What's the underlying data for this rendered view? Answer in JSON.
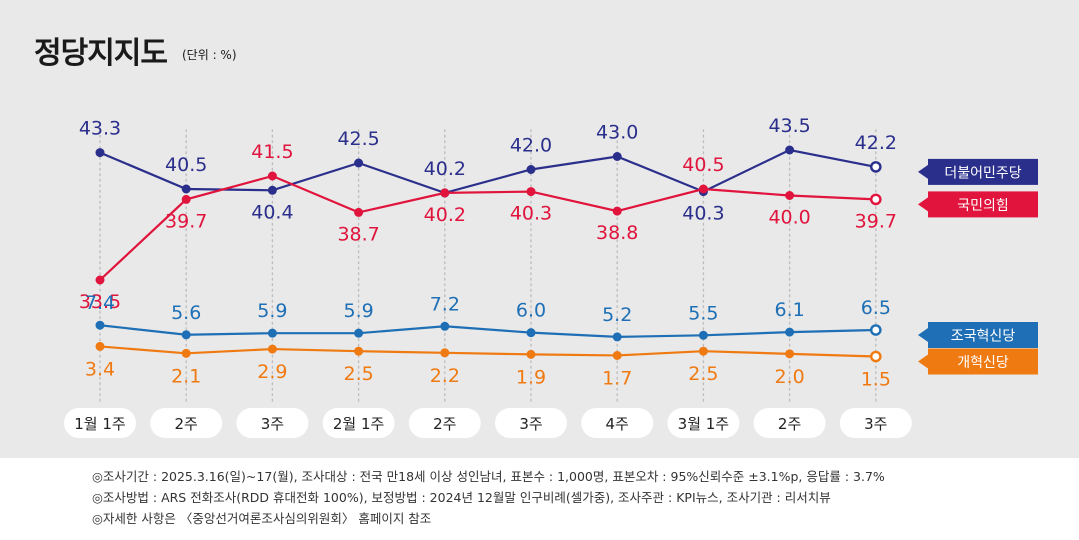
{
  "header": {
    "title": "정당지지도",
    "unit": "(단위 : %)"
  },
  "chart_data": {
    "type": "line",
    "title": "정당지지도",
    "unit": "(단위 : %)",
    "categories": [
      "1월 1주",
      "2주",
      "3주",
      "2월 1주",
      "2주",
      "3주",
      "4주",
      "3월 1주",
      "2주",
      "3주"
    ],
    "series": [
      {
        "name": "더불어민주당",
        "color": "#2b2f8c",
        "label_color": "#2b2f8c",
        "values": [
          43.3,
          40.5,
          40.4,
          42.5,
          40.2,
          42.0,
          43.0,
          40.3,
          43.5,
          42.2
        ],
        "labels": [
          "43.3",
          "40.5",
          "40.4",
          "42.5",
          "40.2",
          "42.0",
          "43.0",
          "40.3",
          "43.5",
          "42.2"
        ]
      },
      {
        "name": "국민의힘",
        "color": "#e0143c",
        "label_color": "#e0143c",
        "values": [
          33.5,
          39.7,
          41.5,
          38.7,
          40.2,
          40.3,
          38.8,
          40.5,
          40.0,
          39.7
        ],
        "labels": [
          "33.5",
          "39.7",
          "41.5",
          "38.7",
          "40.2",
          "40.3",
          "38.8",
          "40.5",
          "40.0",
          "39.7"
        ]
      },
      {
        "name": "조국혁신당",
        "color": "#1e6fb5",
        "label_color": "#1e6fb5",
        "values": [
          7.4,
          5.6,
          5.9,
          5.9,
          7.2,
          6.0,
          5.2,
          5.5,
          6.1,
          6.5
        ],
        "labels": [
          "7.4",
          "5.6",
          "5.9",
          "5.9",
          "7.2",
          "6.0",
          "5.2",
          "5.5",
          "6.1",
          "6.5"
        ]
      },
      {
        "name": "개혁신당",
        "color": "#f07a12",
        "label_color": "#f07a12",
        "values": [
          3.4,
          2.1,
          2.9,
          2.5,
          2.2,
          1.9,
          1.7,
          2.5,
          2.0,
          1.5
        ],
        "labels": [
          "3.4",
          "2.1",
          "2.9",
          "2.5",
          "2.2",
          "1.9",
          "1.7",
          "2.5",
          "2.0",
          "1.5"
        ]
      }
    ],
    "legend": "right"
  },
  "footer": {
    "line1": "◎조사기간 : 2025.3.16(일)~17(월), 조사대상 : 전국 만18세 이상 성인남녀, 표본수 : 1,000명, 표본오차 : 95%신뢰수준 ±3.1%p, 응답률 : 3.7%",
    "line2": "◎조사방법 : ARS 전화조사(RDD 휴대전화 100%), 보정방법 : 2024년 12월말 인구비례(셀가중), 조사주관 : KPI뉴스, 조사기관 : 리서치뷰",
    "line3": "◎자세한 사항은 〈중앙선거여론조사심의위원회〉 홈페이지 참조"
  }
}
